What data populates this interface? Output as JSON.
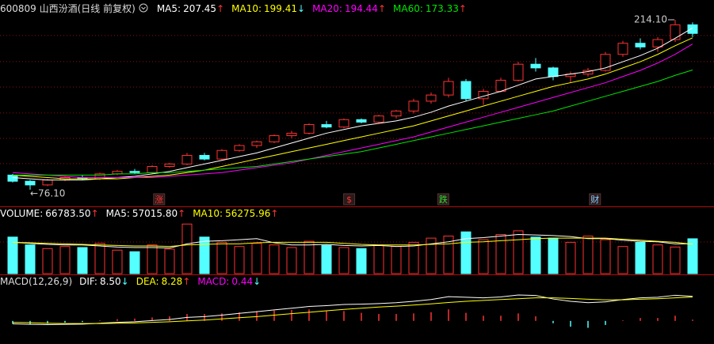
{
  "chart_data": [
    {
      "type": "candlestick",
      "title": "600809 山西汾酒(日线 前复权)",
      "x": [
        0,
        1,
        2,
        3,
        4,
        5,
        6,
        7,
        8,
        9,
        10,
        11,
        12,
        13,
        14,
        15,
        16,
        17,
        18,
        19,
        20,
        21,
        22,
        23,
        24,
        25,
        26,
        27,
        28,
        29,
        30,
        31,
        32,
        33,
        34,
        35,
        36,
        37,
        38,
        39
      ],
      "xlim": [
        -0.5,
        39.5
      ],
      "ylim": [
        64.5,
        220.5
      ],
      "ygrid": [
        201.3,
        180.1,
        159.5,
        138.4,
        117.8,
        97.3
      ],
      "up_color": "#ff3232",
      "down_color": "#54ffff",
      "grid_color": "#8a1010",
      "ohlc": [
        [
          88,
          89,
          82,
          83
        ],
        [
          83,
          84,
          76.1,
          80
        ],
        [
          80,
          85,
          79,
          84
        ],
        [
          84,
          87,
          83,
          86
        ],
        [
          86,
          88,
          84,
          85
        ],
        [
          85,
          90,
          84,
          89
        ],
        [
          89,
          92,
          88,
          91
        ],
        [
          91,
          93,
          89,
          90
        ],
        [
          90,
          96,
          89,
          95
        ],
        [
          95,
          98,
          94,
          97
        ],
        [
          97,
          106,
          96,
          104
        ],
        [
          104,
          106,
          100,
          101
        ],
        [
          101,
          109,
          100,
          108
        ],
        [
          108,
          113,
          107,
          112
        ],
        [
          112,
          116,
          110,
          115
        ],
        [
          115,
          121,
          114,
          120
        ],
        [
          120,
          124,
          118,
          122
        ],
        [
          122,
          130,
          121,
          129
        ],
        [
          129,
          132,
          126,
          127
        ],
        [
          127,
          134,
          126,
          133
        ],
        [
          133,
          134,
          130,
          131
        ],
        [
          131,
          137,
          130,
          136
        ],
        [
          136,
          141,
          134,
          140
        ],
        [
          140,
          150,
          138,
          148
        ],
        [
          148,
          155,
          146,
          153
        ],
        [
          153,
          167,
          151,
          164
        ],
        [
          164,
          166,
          148,
          150
        ],
        [
          150,
          158,
          145,
          156
        ],
        [
          156,
          167,
          155,
          165
        ],
        [
          165,
          180,
          164,
          178
        ],
        [
          178,
          183,
          172,
          175
        ],
        [
          175,
          176,
          165,
          168
        ],
        [
          168,
          172,
          163,
          170
        ],
        [
          170,
          175,
          168,
          173
        ],
        [
          173,
          188,
          172,
          186
        ],
        [
          186,
          197,
          184,
          195
        ],
        [
          195,
          199,
          190,
          192
        ],
        [
          192,
          200,
          188,
          198
        ],
        [
          198,
          214.1,
          196,
          210
        ],
        [
          210,
          212,
          200,
          203
        ]
      ],
      "series": [
        {
          "name": "MA5:",
          "color": "#ffffff",
          "value_label": "207.45",
          "arrow": "↑",
          "values": [
            86,
            85,
            84,
            84,
            84,
            85,
            86,
            87,
            89,
            91,
            94,
            97,
            100,
            103,
            106,
            110,
            114,
            118,
            122,
            125,
            128,
            130,
            132,
            135,
            139,
            144,
            148,
            152,
            156,
            161,
            166,
            168,
            170,
            172,
            175,
            180,
            185,
            191,
            199,
            207.45
          ]
        },
        {
          "name": "MA10:",
          "color": "#ffff00",
          "value_label": "199.41",
          "arrow": "↓",
          "values": [
            88,
            87,
            86,
            85,
            85,
            85,
            85,
            86,
            87,
            88,
            90,
            92,
            95,
            98,
            101,
            104,
            107,
            110,
            113,
            116,
            119,
            122,
            125,
            128,
            132,
            136,
            140,
            144,
            148,
            152,
            156,
            160,
            163,
            166,
            170,
            175,
            180,
            186,
            193,
            199.41
          ]
        },
        {
          "name": "MA20:",
          "color": "#ff00ff",
          "value_label": "194.44",
          "arrow": "↑",
          "values": [
            90,
            89,
            88,
            87,
            86,
            86,
            86,
            86,
            86,
            87,
            88,
            89,
            90,
            92,
            94,
            96,
            98,
            101,
            104,
            107,
            110,
            113,
            116,
            119,
            123,
            127,
            131,
            135,
            139,
            143,
            147,
            151,
            155,
            159,
            163,
            168,
            173,
            179,
            186,
            194.44
          ]
        },
        {
          "name": "MA60:",
          "color": "#00e600",
          "value_label": "173.33",
          "arrow": "↑",
          "values": [
            88,
            88,
            88,
            88,
            88,
            88,
            89,
            89,
            90,
            90,
            91,
            92,
            93,
            94,
            95,
            97,
            99,
            101,
            103,
            105,
            107,
            110,
            113,
            116,
            119,
            122,
            125,
            128,
            131,
            134,
            137,
            140,
            144,
            148,
            152,
            156,
            160,
            164,
            169,
            173.33
          ]
        }
      ],
      "high_label": "214.10",
      "low_label": "←76.10",
      "event_markers": [
        {
          "label": "涨",
          "x": 8.4,
          "color": "#ff3232"
        },
        {
          "label": "$",
          "x": 19.3,
          "color": "#ff3232"
        },
        {
          "label": "跌",
          "x": 24.7,
          "color": "#33dd33"
        },
        {
          "label": "财",
          "x": 33.4,
          "color": "#88ccff"
        }
      ]
    },
    {
      "type": "volume",
      "title": "VOLUME:",
      "value_label": "66783.50",
      "arrow": "↑",
      "color": "#ffffff",
      "ylim": [
        0,
        100000
      ],
      "values": [
        70000,
        55000,
        48000,
        52000,
        50000,
        58000,
        45000,
        42000,
        55000,
        47000,
        95000,
        70000,
        60000,
        52000,
        58000,
        55000,
        50000,
        62000,
        54000,
        50000,
        48000,
        55000,
        52000,
        60000,
        68000,
        72000,
        80000,
        65000,
        75000,
        82000,
        70000,
        68000,
        60000,
        72000,
        65000,
        52000,
        60000,
        55000,
        51000,
        66783.5
      ],
      "series": [
        {
          "name": "MA5:",
          "color": "#ffffff",
          "value_label": "57015.80",
          "arrow": "↑",
          "values": [
            60000,
            58000,
            56000,
            55000,
            55000,
            53000,
            51000,
            50000,
            50000,
            49000,
            57000,
            62000,
            63000,
            65000,
            67000,
            59000,
            55000,
            55000,
            56000,
            54000,
            53000,
            54000,
            52000,
            53000,
            57000,
            61000,
            67000,
            69000,
            72000,
            75000,
            74000,
            73000,
            71000,
            67000,
            67000,
            64000,
            62000,
            61000,
            57000,
            57015.8
          ]
        },
        {
          "name": "MA10:",
          "color": "#ffff00",
          "value_label": "56275.96",
          "arrow": "↑",
          "values": [
            60000,
            59000,
            58000,
            57000,
            56000,
            55000,
            54000,
            53000,
            53000,
            52000,
            55000,
            56000,
            57000,
            57000,
            59000,
            60000,
            60000,
            60000,
            60000,
            58000,
            56000,
            55000,
            55000,
            55000,
            56000,
            57000,
            60000,
            61000,
            63000,
            65000,
            67000,
            68000,
            68000,
            68000,
            68000,
            66000,
            64000,
            62000,
            60000,
            56275.96
          ]
        }
      ]
    },
    {
      "type": "macd",
      "title": "MACD(12,26,9)",
      "ylim": [
        -8,
        12
      ],
      "series": [
        {
          "name": "DIF:",
          "color": "#ffffff",
          "value_label": "8.50",
          "arrow": "↓",
          "values": [
            -1,
            -1.2,
            -1.3,
            -1.2,
            -1.1,
            -0.8,
            -0.5,
            -0.3,
            0.1,
            0.5,
            1.2,
            1.5,
            2,
            2.6,
            3.2,
            3.8,
            4.4,
            5,
            5.3,
            5.7,
            5.8,
            6,
            6.3,
            6.8,
            7.4,
            8.4,
            8.2,
            8,
            8.3,
            9,
            8.8,
            7.6,
            6.8,
            6.3,
            6.6,
            7.4,
            8,
            8.2,
            8.9,
            8.5
          ]
        },
        {
          "name": "DEA:",
          "color": "#ffff00",
          "value_label": "8.28",
          "arrow": "↑",
          "values": [
            -0.5,
            -0.6,
            -0.8,
            -0.9,
            -0.9,
            -0.9,
            -0.8,
            -0.7,
            -0.5,
            -0.3,
            0,
            0.3,
            0.7,
            1.1,
            1.5,
            2,
            2.5,
            3,
            3.5,
            4,
            4.4,
            4.8,
            5.1,
            5.5,
            5.9,
            6.4,
            6.8,
            7.1,
            7.4,
            7.7,
            8,
            8,
            7.8,
            7.5,
            7.3,
            7.3,
            7.5,
            7.7,
            8,
            8.28
          ]
        }
      ],
      "histogram": {
        "name": "MACD:",
        "color": "#ff00ff",
        "value_label": "0.44",
        "arrow": "↓",
        "values": [
          -1,
          -1.2,
          -1,
          -0.6,
          -0.4,
          0.2,
          0.6,
          0.8,
          1.2,
          1.6,
          2.4,
          2.4,
          2.6,
          3,
          3.4,
          3.6,
          3.8,
          4,
          3.6,
          3.4,
          2.8,
          2.4,
          2.4,
          2.6,
          3,
          4,
          2.8,
          1.8,
          1.8,
          2.6,
          1.6,
          -0.8,
          -2,
          -2.4,
          -1.4,
          0.2,
          1,
          1,
          1.8,
          0.44
        ]
      }
    }
  ]
}
